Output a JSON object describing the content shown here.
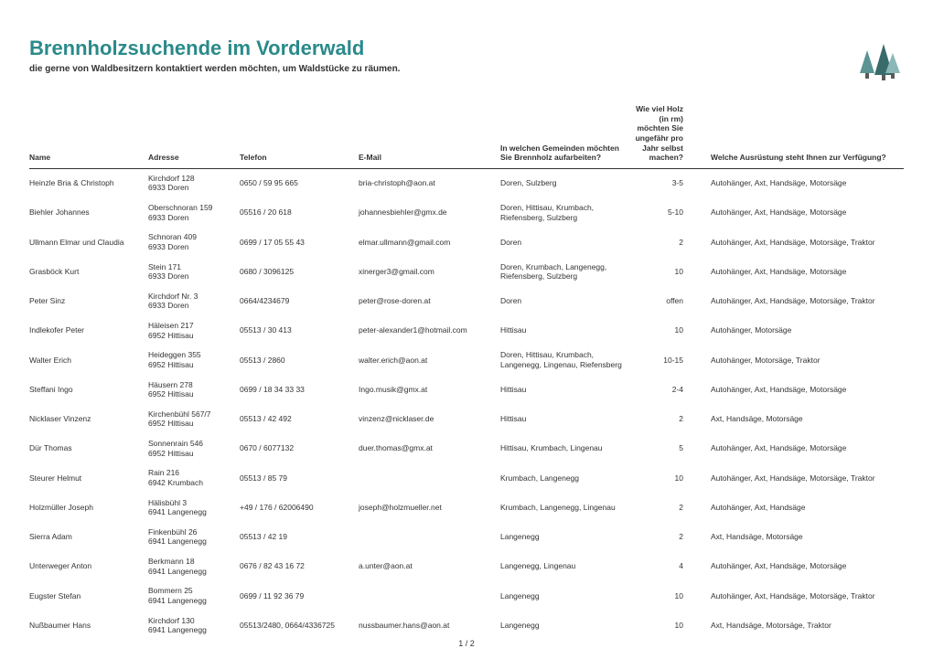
{
  "title": "Brennholzsuchende im Vorderwald",
  "subtitle": "die gerne von Waldbesitzern kontaktiert werden möchten, um Waldstücke zu räumen.",
  "footer": "1 / 2",
  "colors": {
    "title": "#2a8a8a",
    "tree_dark": "#3a6b6b",
    "tree_mid": "#5a9494",
    "tree_light": "#8ab8b8"
  },
  "columns": [
    "Name",
    "Adresse",
    "Telefon",
    "E-Mail",
    "In welchen Gemeinden möchten Sie Brennholz aufarbeiten?",
    "Wie viel Holz (in rm) möchten Sie ungefähr pro Jahr selbst machen?",
    "Welche Ausrüstung steht Ihnen zur Verfügung?"
  ],
  "rows": [
    {
      "name": "Heinzle Bria & Christoph",
      "addr": "Kirchdorf 128\n6933 Doren",
      "tel": "0650 / 59 95 665",
      "mail": "bria-christoph@aon.at",
      "gem": "Doren, Sulzberg",
      "holz": "3-5",
      "aus": "Autohänger, Axt, Handsäge, Motorsäge"
    },
    {
      "name": "Biehler Johannes",
      "addr": "Oberschnoran 159\n6933 Doren",
      "tel": "05516 / 20 618",
      "mail": "johannesbiehler@gmx.de",
      "gem": "Doren, Hittisau, Krumbach, Riefensberg, Sulzberg",
      "holz": "5-10",
      "aus": "Autohänger, Axt, Handsäge, Motorsäge"
    },
    {
      "name": "Ullmann Elmar und Claudia",
      "addr": "Schnoran 409\n6933 Doren",
      "tel": "0699 / 17 05 55 43",
      "mail": "elmar.ullmann@gmail.com",
      "gem": "Doren",
      "holz": "2",
      "aus": "Autohänger, Axt, Handsäge, Motorsäge, Traktor"
    },
    {
      "name": "Grasböck Kurt",
      "addr": "Stein 171\n6933 Doren",
      "tel": "0680 / 3096125",
      "mail": "xinerger3@gmail.com",
      "gem": "Doren, Krumbach, Langenegg, Riefensberg, Sulzberg",
      "holz": "10",
      "aus": "Autohänger, Axt, Handsäge, Motorsäge"
    },
    {
      "name": "Peter Sinz",
      "addr": "Kirchdorf Nr. 3\n6933 Doren",
      "tel": "0664/4234679",
      "mail": "peter@rose-doren.at",
      "gem": "Doren",
      "holz": "offen",
      "aus": "Autohänger, Axt, Handsäge, Motorsäge, Traktor"
    },
    {
      "name": "Indlekofer Peter",
      "addr": "Häleisen 217\n6952 Hittisau",
      "tel": "05513 / 30 413",
      "mail": "peter-alexander1@hotmail.com",
      "gem": "Hittisau",
      "holz": "10",
      "aus": "Autohänger, Motorsäge"
    },
    {
      "name": "Walter Erich",
      "addr": "Heideggen 355\n6952 Hittisau",
      "tel": "05513 / 2860",
      "mail": "walter.erich@aon.at",
      "gem": "Doren, Hittisau, Krumbach, Langenegg, Lingenau, Riefensberg",
      "holz": "10-15",
      "aus": "Autohänger, Motorsäge, Traktor"
    },
    {
      "name": "Steffani Ingo",
      "addr": "Häusern 278\n6952 Hittisau",
      "tel": "0699 / 18 34 33 33",
      "mail": "Ingo.musik@gmx.at",
      "gem": "Hittisau",
      "holz": "2-4",
      "aus": "Autohänger, Axt, Handsäge, Motorsäge"
    },
    {
      "name": "Nicklaser Vinzenz",
      "addr": "Kirchenbühl 567/7\n6952 Hittisau",
      "tel": "05513 / 42 492",
      "mail": "vinzenz@nicklaser.de",
      "gem": "Hittisau",
      "holz": "2",
      "aus": "Axt, Handsäge, Motorsäge"
    },
    {
      "name": "Dür Thomas",
      "addr": "Sonnenrain 546\n6952 Hittisau",
      "tel": "0670 / 6077132",
      "mail": "duer.thomas@gmx.at",
      "gem": "Hittisau, Krumbach, Lingenau",
      "holz": "5",
      "aus": "Autohänger, Axt, Handsäge, Motorsäge"
    },
    {
      "name": "Steurer Helmut",
      "addr": "Rain 216\n6942 Krumbach",
      "tel": "05513 / 85 79",
      "mail": "",
      "gem": "Krumbach, Langenegg",
      "holz": "10",
      "aus": "Autohänger, Axt, Handsäge, Motorsäge, Traktor"
    },
    {
      "name": "Holzmüller Joseph",
      "addr": "Hälisbühl 3\n6941 Langenegg",
      "tel": "+49 / 176 / 62006490",
      "mail": "joseph@holzmueller.net",
      "gem": "Krumbach, Langenegg, Lingenau",
      "holz": "2",
      "aus": "Autohänger, Axt, Handsäge"
    },
    {
      "name": "Sierra Adam",
      "addr": "Finkenbühl 26\n6941 Langenegg",
      "tel": "05513 / 42 19",
      "mail": "",
      "gem": "Langenegg",
      "holz": "2",
      "aus": "Axt, Handsäge, Motorsäge"
    },
    {
      "name": "Unterweger Anton",
      "addr": "Berkmann 18\n6941 Langenegg",
      "tel": "0676 / 82 43 16 72",
      "mail": "a.unter@aon.at",
      "gem": "Langenegg, Lingenau",
      "holz": "4",
      "aus": "Autohänger, Axt, Handsäge, Motorsäge"
    },
    {
      "name": "Eugster Stefan",
      "addr": "Bommern 25\n6941 Langenegg",
      "tel": "0699 / 11 92 36 79",
      "mail": "",
      "gem": "Langenegg",
      "holz": "10",
      "aus": "Autohänger, Axt, Handsäge, Motorsäge, Traktor"
    },
    {
      "name": "Nußbaumer Hans",
      "addr": "Kirchdorf 130\n6941 Langenegg",
      "tel": "05513/2480, 0664/4336725",
      "mail": "nussbaumer.hans@aon.at",
      "gem": "Langenegg",
      "holz": "10",
      "aus": "Axt, Handsäge, Motorsäge, Traktor"
    }
  ]
}
